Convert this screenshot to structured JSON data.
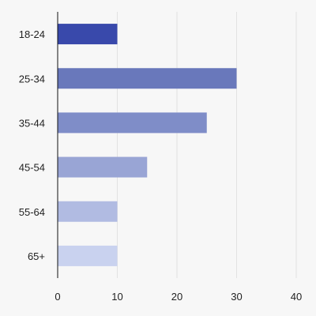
{
  "chart_data": {
    "type": "bar",
    "orientation": "horizontal",
    "categories": [
      "18-24",
      "25-34",
      "35-44",
      "45-54",
      "55-64",
      "65+"
    ],
    "values": [
      10,
      30,
      25,
      15,
      10,
      10
    ],
    "colors": [
      "#3949ab",
      "#6978bb",
      "#7f8dc8",
      "#99a5d5",
      "#b1bbe2",
      "#c9d2ef"
    ],
    "title": "",
    "xlabel": "",
    "ylabel": "",
    "xlim": [
      0,
      40
    ],
    "xticks": [
      0,
      10,
      20,
      30,
      40
    ],
    "grid": "vertical",
    "legend": "none"
  }
}
